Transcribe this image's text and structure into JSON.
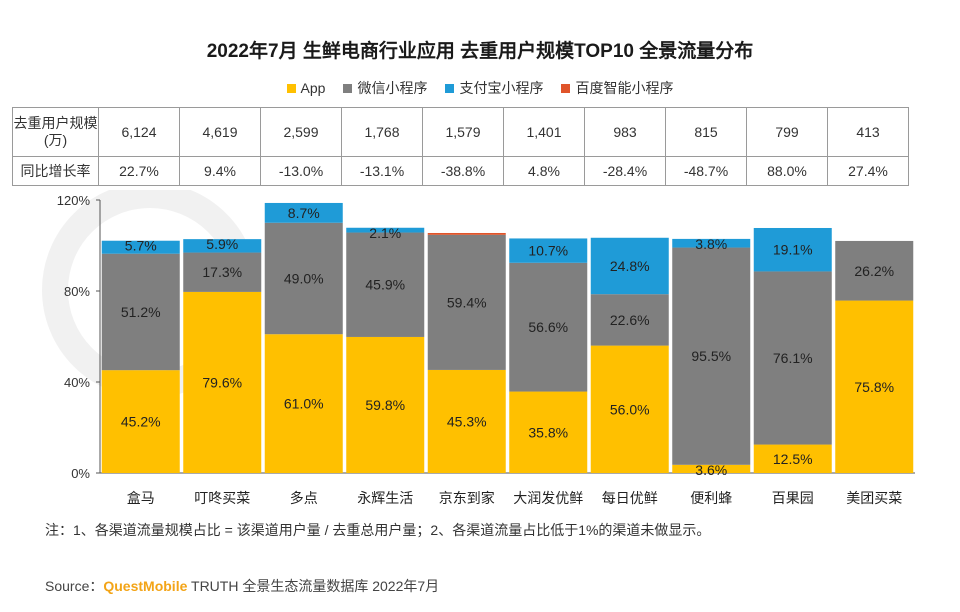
{
  "title": "2022年7月 生鲜电商行业应用 去重用户规模TOP10 全景流量分布",
  "legend": [
    {
      "label": "App",
      "color": "#ffc000"
    },
    {
      "label": "微信小程序",
      "color": "#7f7f7f"
    },
    {
      "label": "支付宝小程序",
      "color": "#1f9bd7"
    },
    {
      "label": "百度智能小程序",
      "color": "#e0542a"
    }
  ],
  "table": {
    "row1_label": "去重用户规模(万)",
    "row2_label": "同比增长率",
    "users": [
      "6,124",
      "4,619",
      "2,599",
      "1,768",
      "1,579",
      "1,401",
      "983",
      "815",
      "799",
      "413"
    ],
    "growth": [
      "22.7%",
      "9.4%",
      "-13.0%",
      "-13.1%",
      "-38.8%",
      "4.8%",
      "-28.4%",
      "-48.7%",
      "88.0%",
      "27.4%"
    ]
  },
  "chart_data": {
    "type": "bar",
    "stacked": true,
    "categories": [
      "盒马",
      "叮咚买菜",
      "多点",
      "永辉生活",
      "京东到家",
      "大润发优鲜",
      "每日优鲜",
      "便利蜂",
      "百果园",
      "美团买菜"
    ],
    "series": [
      {
        "name": "App",
        "color": "#ffc000",
        "values": [
          45.2,
          79.6,
          61.0,
          59.8,
          45.3,
          35.8,
          56.0,
          3.6,
          12.5,
          75.8
        ],
        "labels": [
          "45.2%",
          "79.6%",
          "61.0%",
          "59.8%",
          "45.3%",
          "35.8%",
          "56.0%",
          "3.6%",
          "12.5%",
          "75.8%"
        ]
      },
      {
        "name": "微信小程序",
        "color": "#7f7f7f",
        "values": [
          51.2,
          17.3,
          49.0,
          45.9,
          59.4,
          56.6,
          22.6,
          95.5,
          76.1,
          26.2
        ],
        "labels": [
          "51.2%",
          "17.3%",
          "49.0%",
          "45.9%",
          "59.4%",
          "56.6%",
          "22.6%",
          "95.5%",
          "76.1%",
          "26.2%"
        ]
      },
      {
        "name": "支付宝小程序",
        "color": "#1f9bd7",
        "values": [
          5.7,
          5.9,
          8.7,
          2.1,
          0,
          10.7,
          24.8,
          3.8,
          19.1,
          0
        ],
        "labels": [
          "5.7%",
          "5.9%",
          "8.7%",
          "2.1%",
          "",
          "10.7%",
          "24.8%",
          "3.8%",
          "19.1%",
          ""
        ]
      },
      {
        "name": "百度智能小程序",
        "color": "#e0542a",
        "values": [
          0,
          0,
          0,
          0,
          0.8,
          0,
          0,
          0,
          0,
          0
        ],
        "labels": [
          "",
          "",
          "",
          "",
          "",
          "",
          "",
          "",
          "",
          ""
        ]
      }
    ],
    "y_ticks": [
      "0%",
      "40%",
      "80%",
      "120%"
    ],
    "ylim": [
      0,
      120
    ]
  },
  "note": "注：1、各渠道流量规模占比 = 该渠道用户量 / 去重总用户量；2、各渠道流量占比低于1%的渠道未做显示。",
  "source": {
    "prefix": "Source：",
    "brand": "QuestMobile",
    "text": " TRUTH 全景生态流量数据库 2022年7月"
  }
}
